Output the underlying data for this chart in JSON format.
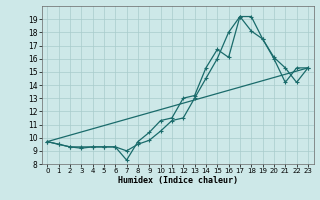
{
  "xlabel": "Humidex (Indice chaleur)",
  "xlim": [
    -0.5,
    23.5
  ],
  "ylim": [
    8,
    20
  ],
  "yticks": [
    8,
    9,
    10,
    11,
    12,
    13,
    14,
    15,
    16,
    17,
    18,
    19
  ],
  "xticks": [
    0,
    1,
    2,
    3,
    4,
    5,
    6,
    7,
    8,
    9,
    10,
    11,
    12,
    13,
    14,
    15,
    16,
    17,
    18,
    19,
    20,
    21,
    22,
    23
  ],
  "bg_color": "#cde8e8",
  "grid_color": "#a8cccc",
  "line_color": "#1a6b6b",
  "line1_x": [
    0,
    1,
    2,
    3,
    4,
    5,
    6,
    7,
    8,
    9,
    10,
    11,
    12,
    13,
    14,
    15,
    16,
    17,
    18,
    19,
    20,
    21,
    22,
    23
  ],
  "line1_y": [
    9.7,
    9.5,
    9.3,
    9.3,
    9.3,
    9.3,
    9.3,
    8.3,
    9.7,
    10.4,
    11.3,
    11.5,
    13.0,
    13.2,
    15.3,
    16.7,
    16.1,
    19.2,
    19.2,
    17.5,
    16.0,
    14.2,
    15.3,
    15.3
  ],
  "line2_x": [
    0,
    1,
    2,
    3,
    4,
    5,
    6,
    7,
    8,
    9,
    10,
    11,
    12,
    13,
    14,
    15,
    16,
    17,
    18,
    19,
    20,
    21,
    22,
    23
  ],
  "line2_y": [
    9.7,
    9.5,
    9.3,
    9.2,
    9.3,
    9.3,
    9.3,
    9.0,
    9.5,
    9.8,
    10.5,
    11.3,
    11.5,
    13.0,
    14.5,
    16.0,
    18.0,
    19.2,
    18.1,
    17.5,
    16.1,
    15.3,
    14.2,
    15.3
  ],
  "line3_x": [
    0,
    23
  ],
  "line3_y": [
    9.7,
    15.3
  ],
  "lw": 0.9,
  "ms": 2.5
}
